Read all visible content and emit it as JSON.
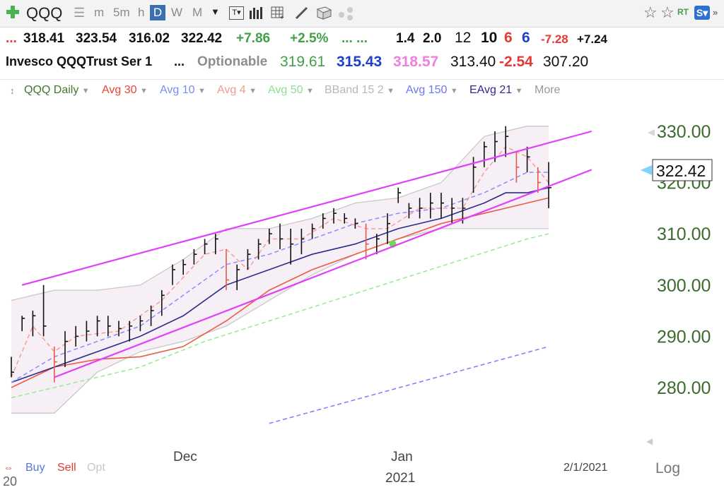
{
  "toolbar": {
    "symbol": "QQQ",
    "timeframes": [
      "m",
      "5m",
      "h",
      "D",
      "W",
      "M"
    ]
  },
  "quote": {
    "open": "318.41",
    "high": "323.54",
    "low": "316.02",
    "close": "322.42",
    "change": "+7.86",
    "change_pct": "+2.5%",
    "ellipsis": "...",
    "ellipsis2": "... ...",
    "v1": "1.4",
    "v2": "2.0",
    "v3": "12",
    "v4": "10",
    "v5": "6",
    "v6": "6",
    "v7": "-7.28",
    "v8": "+7.24"
  },
  "info": {
    "name": "Invesco QQQTrust Ser 1",
    "ellipsis": "...",
    "optionable": "Optionable",
    "p1": "319.61",
    "p2": "315.43",
    "p3": "318.57",
    "p4": "313.40",
    "p5": "-2.54",
    "p6": "307.20"
  },
  "legend": {
    "items": [
      "QQQ Daily",
      "Avg 30",
      "Avg 10",
      "Avg 4",
      "Avg 50",
      "BBand 15 2",
      "Avg 150",
      "EAvg 21",
      "More"
    ]
  },
  "colors": {
    "price_bar": "#111111",
    "down_bar": "#e85a45",
    "avg30": "#ea5c43",
    "avg10": "#8c8cff",
    "avg4": "#f59a90",
    "avg50": "#90ee90",
    "bband": "#c8c8c8",
    "avg150": "#7b7bff",
    "eavg21": "#2b2b8c",
    "trendline": "#e040fb",
    "price_axis": "#3d6a2e"
  },
  "chart_data": {
    "type": "bar",
    "title": "QQQ Daily",
    "ylim": [
      273,
      333
    ],
    "yticks": [
      "330.00",
      "320.00",
      "310.00",
      "300.00",
      "290.00",
      "280.00"
    ],
    "ytick_values": [
      330,
      320,
      310,
      300,
      290,
      280
    ],
    "current_price": "322.42",
    "xlabels": [
      "Dec",
      "Jan",
      "2021",
      "2/1/2021",
      "20"
    ],
    "scale": "Log",
    "bars": [
      [
        286,
        282,
        283
      ],
      [
        294,
        291,
        293.5
      ],
      [
        295,
        290,
        294
      ],
      [
        300,
        290,
        292
      ],
      [
        288,
        281,
        285
      ],
      [
        291,
        284,
        289
      ],
      [
        292,
        288,
        290
      ],
      [
        293,
        289,
        291
      ],
      [
        294,
        290,
        293
      ],
      [
        294,
        290,
        292
      ],
      [
        293,
        290,
        291.5
      ],
      [
        293,
        289,
        292
      ],
      [
        294,
        291,
        293
      ],
      [
        296,
        292,
        295
      ],
      [
        299,
        294,
        298
      ],
      [
        304,
        300,
        303
      ],
      [
        305,
        302,
        304
      ],
      [
        307,
        304,
        306
      ],
      [
        309,
        306,
        308
      ],
      [
        310,
        306,
        309
      ],
      [
        307,
        299,
        301
      ],
      [
        304,
        299,
        303
      ],
      [
        307,
        303,
        306
      ],
      [
        309,
        305,
        308
      ],
      [
        311,
        308,
        310
      ],
      [
        312,
        307,
        309
      ],
      [
        311,
        304,
        308
      ],
      [
        311,
        306,
        309
      ],
      [
        312,
        309,
        311
      ],
      [
        314,
        311,
        313
      ],
      [
        315,
        312,
        314
      ],
      [
        314,
        312,
        313
      ],
      [
        313,
        311,
        312
      ],
      [
        312,
        305,
        308
      ],
      [
        310,
        306,
        309
      ],
      [
        314,
        308,
        312
      ],
      [
        319,
        316,
        318
      ],
      [
        316,
        313,
        315
      ],
      [
        317,
        313,
        315
      ],
      [
        318,
        313,
        316
      ],
      [
        318,
        313,
        316
      ],
      [
        317,
        312,
        315
      ],
      [
        317,
        312,
        315
      ],
      [
        325,
        318,
        323
      ],
      [
        328,
        323,
        327
      ],
      [
        330,
        324,
        328
      ],
      [
        331,
        325,
        329
      ],
      [
        326,
        320,
        323
      ],
      [
        327,
        322,
        325
      ],
      [
        323,
        318,
        320
      ],
      [
        324,
        315,
        319
      ]
    ],
    "avg4": [
      [
        0,
        282
      ],
      [
        2,
        292
      ],
      [
        4,
        287
      ],
      [
        6,
        290
      ],
      [
        10,
        291
      ],
      [
        14,
        297
      ],
      [
        18,
        306
      ],
      [
        20,
        307
      ],
      [
        22,
        303
      ],
      [
        24,
        309
      ],
      [
        27,
        309
      ],
      [
        30,
        313
      ],
      [
        33,
        311
      ],
      [
        35,
        311
      ],
      [
        38,
        315
      ],
      [
        42,
        315
      ],
      [
        44,
        322
      ],
      [
        46,
        327
      ],
      [
        48,
        325
      ],
      [
        50,
        320
      ]
    ],
    "avg10": [
      [
        0,
        281
      ],
      [
        4,
        286
      ],
      [
        8,
        289
      ],
      [
        12,
        292
      ],
      [
        16,
        298
      ],
      [
        20,
        304
      ],
      [
        24,
        306
      ],
      [
        28,
        309
      ],
      [
        32,
        312
      ],
      [
        36,
        314
      ],
      [
        40,
        315
      ],
      [
        44,
        318
      ],
      [
        48,
        322
      ],
      [
        50,
        322
      ]
    ],
    "eavg21": [
      [
        0,
        281
      ],
      [
        4,
        284
      ],
      [
        8,
        287
      ],
      [
        12,
        290
      ],
      [
        16,
        294
      ],
      [
        20,
        300
      ],
      [
        24,
        303
      ],
      [
        28,
        306
      ],
      [
        32,
        308
      ],
      [
        36,
        311
      ],
      [
        40,
        313
      ],
      [
        44,
        316
      ],
      [
        46,
        318
      ],
      [
        48,
        318
      ],
      [
        50,
        319
      ]
    ],
    "avg30": [
      [
        0,
        280
      ],
      [
        4,
        284
      ],
      [
        8,
        285.5
      ],
      [
        12,
        286
      ],
      [
        16,
        288
      ],
      [
        20,
        293
      ],
      [
        24,
        299
      ],
      [
        28,
        303
      ],
      [
        32,
        306
      ],
      [
        36,
        309
      ],
      [
        40,
        312
      ],
      [
        44,
        314
      ],
      [
        48,
        316
      ],
      [
        50,
        317
      ]
    ],
    "avg50": [
      [
        0,
        278
      ],
      [
        6,
        281
      ],
      [
        12,
        284
      ],
      [
        18,
        289
      ],
      [
        24,
        293
      ],
      [
        30,
        297
      ],
      [
        36,
        301
      ],
      [
        42,
        305
      ],
      [
        48,
        309
      ],
      [
        50,
        310
      ]
    ],
    "bband_upper": [
      [
        0,
        297
      ],
      [
        4,
        299
      ],
      [
        8,
        299
      ],
      [
        12,
        300
      ],
      [
        16,
        305
      ],
      [
        20,
        311
      ],
      [
        24,
        311
      ],
      [
        28,
        313
      ],
      [
        32,
        316
      ],
      [
        36,
        317
      ],
      [
        40,
        320
      ],
      [
        44,
        329
      ],
      [
        48,
        331
      ],
      [
        50,
        331
      ]
    ],
    "bband_lower": [
      [
        0,
        275
      ],
      [
        4,
        275
      ],
      [
        8,
        283
      ],
      [
        12,
        287
      ],
      [
        16,
        289
      ],
      [
        20,
        292
      ],
      [
        24,
        297
      ],
      [
        28,
        302
      ],
      [
        32,
        306
      ],
      [
        36,
        309
      ],
      [
        40,
        311
      ],
      [
        44,
        311
      ],
      [
        48,
        311
      ],
      [
        50,
        311
      ]
    ],
    "avg150": [
      [
        24,
        273
      ],
      [
        50,
        288
      ]
    ],
    "trend_upper": [
      [
        1,
        300
      ],
      [
        54,
        330
      ]
    ],
    "trend_lower": [
      [
        4,
        282
      ],
      [
        54,
        322.5
      ]
    ],
    "signal_dot": [
      35.5,
      308
    ]
  },
  "bottom": {
    "buy": "Buy",
    "sell": "Sell",
    "opt": "Opt",
    "dec": "Dec",
    "jan": "Jan",
    "year": "2021",
    "date": "2/1/2021",
    "left_year": "20",
    "log": "Log"
  }
}
